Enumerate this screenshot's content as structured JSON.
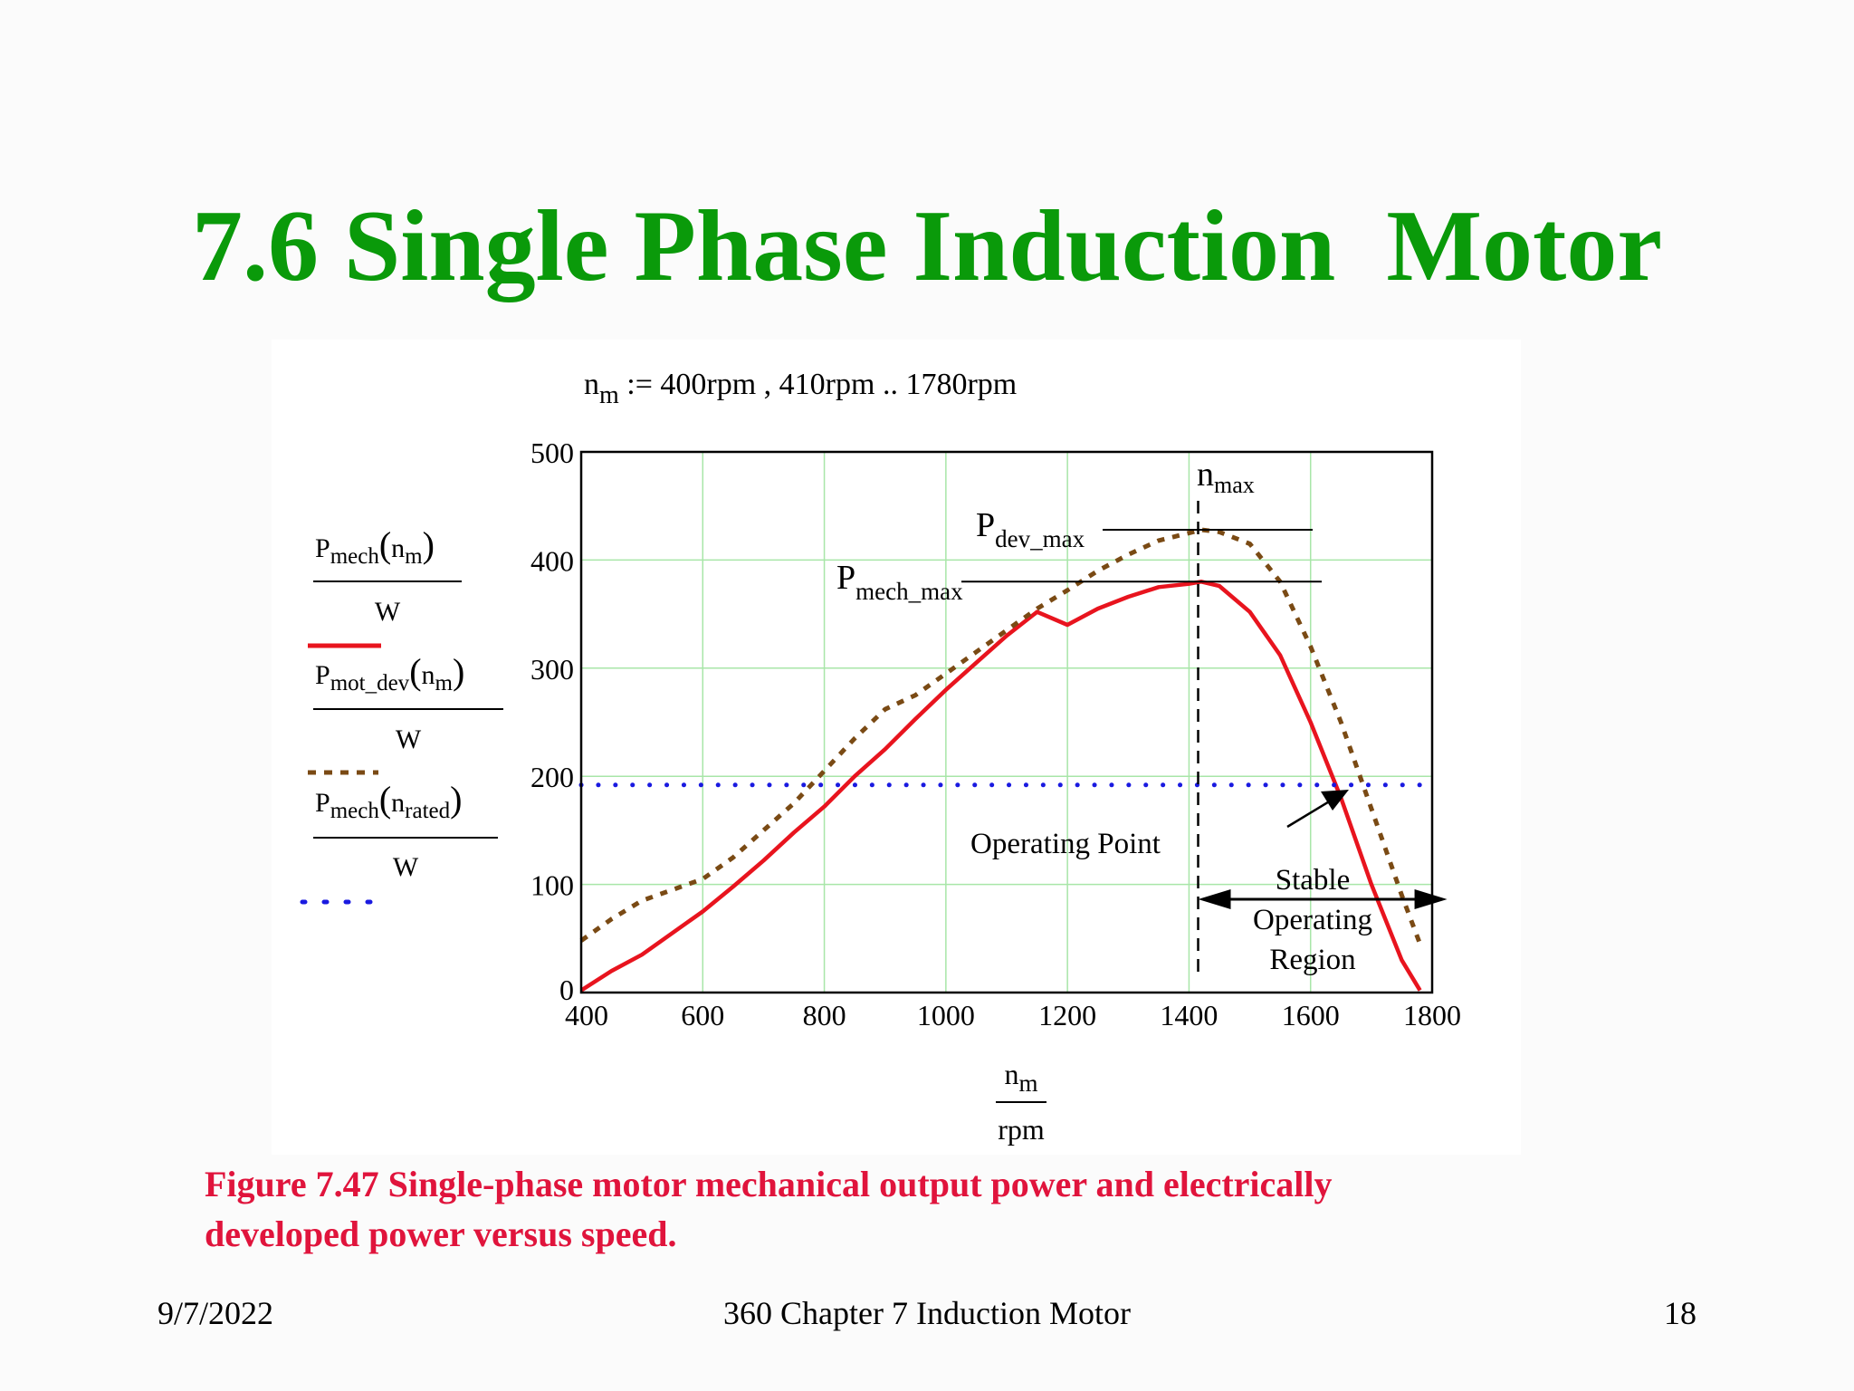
{
  "slide": {
    "title": "7.6 Single Phase Induction  Motor",
    "caption_line1": "Figure 7.47 Single-phase motor mechanical output power and electrically",
    "caption_line2": "developed power versus speed."
  },
  "footer": {
    "date": "9/7/2022",
    "center": "360 Chapter 7 Induction Motor",
    "page": "18"
  },
  "range_definition": {
    "var": "n",
    "sub": "m",
    "rest": " := 400rpm , 410rpm .. 1780rpm"
  },
  "legend": [
    {
      "var": "P",
      "sub": "mech",
      "arg_var": "n",
      "arg_sub": "m",
      "denominator": "W",
      "color": "#e8141e",
      "style": "solid"
    },
    {
      "var": "P",
      "sub": "mot_dev",
      "arg_var": "n",
      "arg_sub": "m",
      "denominator": "W",
      "color": "#7a4a14",
      "style": "dashed"
    },
    {
      "var": "P",
      "sub": "mech",
      "arg_var": "n",
      "arg_sub": "rated",
      "denominator": "W",
      "color": "#1a1ae0",
      "style": "dotted"
    }
  ],
  "annotations": {
    "nmax_main": "n",
    "nmax_sub": "max",
    "pdev_main": "P",
    "pdev_sub": "dev_max",
    "pmech_main": "P",
    "pmech_sub": "mech_max",
    "operating_point": "Operating Point",
    "stable_line1": "Stable",
    "stable_line2": "Operating",
    "stable_line3": "Region"
  },
  "chart_data": {
    "type": "line",
    "xlim": [
      400,
      1800
    ],
    "ylim": [
      0,
      500
    ],
    "xticks": [
      400,
      600,
      800,
      1000,
      1200,
      1400,
      1600,
      1800
    ],
    "yticks": [
      0,
      100,
      200,
      300,
      400,
      500
    ],
    "xlabel_num_var": "n",
    "xlabel_num_sub": "m",
    "xlabel_den": "rpm",
    "grid": true,
    "n_max": 1415,
    "P_dev_max": 428,
    "P_mech_max": 380,
    "stable_region": [
      1415,
      1780
    ],
    "series": [
      {
        "x": [
          400,
          450,
          500,
          550,
          600,
          650,
          700,
          750,
          800,
          850,
          900,
          950,
          1000,
          1050,
          1100,
          1150,
          1200,
          1250,
          1300,
          1350,
          1400,
          1420,
          1450,
          1500,
          1550,
          1600,
          1650,
          1700,
          1750,
          1780
        ],
        "y": [
          2,
          20,
          35,
          55,
          75,
          98,
          122,
          148,
          172,
          200,
          225,
          253,
          280,
          305,
          330,
          352,
          340,
          355,
          366,
          375,
          378,
          380,
          376,
          352,
          312,
          250,
          180,
          100,
          30,
          2
        ],
        "color": "#e8141e",
        "style": "solid"
      },
      {
        "x": [
          400,
          450,
          500,
          550,
          600,
          650,
          700,
          750,
          800,
          850,
          900,
          950,
          1000,
          1050,
          1100,
          1150,
          1200,
          1250,
          1300,
          1350,
          1400,
          1420,
          1450,
          1500,
          1550,
          1600,
          1650,
          1700,
          1750,
          1780
        ],
        "y": [
          48,
          68,
          85,
          95,
          105,
          125,
          150,
          175,
          205,
          235,
          262,
          275,
          295,
          315,
          335,
          355,
          372,
          390,
          405,
          418,
          425,
          428,
          426,
          415,
          380,
          320,
          250,
          170,
          90,
          45
        ],
        "color": "#7a4a14",
        "style": "dashed"
      },
      {
        "x": [
          400,
          1800
        ],
        "y": [
          192,
          192
        ],
        "color": "#1a1ae0",
        "style": "dotted"
      }
    ]
  }
}
